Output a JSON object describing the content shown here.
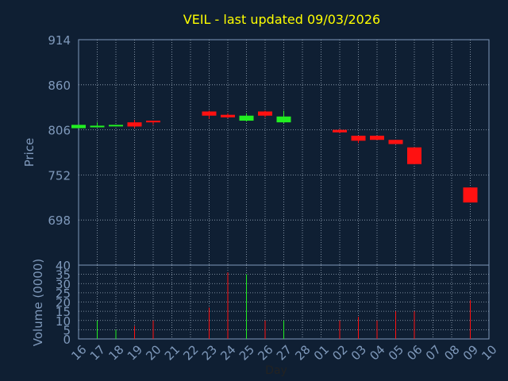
{
  "chart_data": {
    "type": "candlestick",
    "title": "VEIL - last updated 09/03/2026",
    "colors": {
      "background": "#0f1f33",
      "plot_background": "#0f1f33",
      "frame": "#7f99bb",
      "grid": "#9aaabb",
      "title": "#ffff00",
      "label": "#7f99bb",
      "up": "#22ee22",
      "down": "#ff1111",
      "axis_text": "#222222"
    },
    "price_panel": {
      "ylabel": "Price",
      "ylim": [
        644,
        914
      ],
      "yticks": [
        914,
        860,
        806,
        752,
        698
      ],
      "grid": true
    },
    "volume_panel": {
      "ylabel": "Volume (0000)",
      "ylim": [
        0,
        40
      ],
      "yticks": [
        40,
        35,
        30,
        25,
        20,
        15,
        10,
        5,
        0
      ],
      "grid": true
    },
    "xlabel": "Day",
    "x_ticks": [
      "16",
      "17",
      "18",
      "19",
      "20",
      "21",
      "22",
      "23",
      "24",
      "25",
      "26",
      "27",
      "28",
      "01",
      "02",
      "03",
      "04",
      "05",
      "06",
      "07",
      "08",
      "09",
      "10"
    ],
    "candles": [
      {
        "day": "16",
        "open": 808,
        "close": 812,
        "high": 812,
        "low": 808,
        "volume": 0
      },
      {
        "day": "17",
        "open": 809,
        "close": 811,
        "high": 815,
        "low": 809,
        "volume": 10
      },
      {
        "day": "18",
        "open": 811,
        "close": 812,
        "high": 812,
        "low": 810,
        "volume": 5
      },
      {
        "day": "19",
        "open": 815,
        "close": 810,
        "high": 818,
        "low": 808,
        "volume": 7
      },
      {
        "day": "20",
        "open": 817,
        "close": 815,
        "high": 817,
        "low": 812,
        "volume": 10
      },
      {
        "day": "23",
        "open": 828,
        "close": 823,
        "high": 829,
        "low": 819,
        "volume": 17
      },
      {
        "day": "24",
        "open": 824,
        "close": 821,
        "high": 826,
        "low": 820,
        "volume": 36
      },
      {
        "day": "25",
        "open": 817,
        "close": 823,
        "high": 826,
        "low": 816,
        "volume": 35
      },
      {
        "day": "26",
        "open": 828,
        "close": 823,
        "high": 829,
        "low": 821,
        "volume": 10
      },
      {
        "day": "27",
        "open": 815,
        "close": 822,
        "high": 829,
        "low": 814,
        "volume": 10
      },
      {
        "day": "02",
        "open": 806,
        "close": 803,
        "high": 807,
        "low": 802,
        "volume": 10
      },
      {
        "day": "03",
        "open": 799,
        "close": 793,
        "high": 799,
        "low": 790,
        "volume": 12
      },
      {
        "day": "04",
        "open": 799,
        "close": 794,
        "high": 799,
        "low": 794,
        "volume": 10
      },
      {
        "day": "05",
        "open": 794,
        "close": 789,
        "high": 794,
        "low": 789,
        "volume": 15
      },
      {
        "day": "06",
        "open": 785,
        "close": 765,
        "high": 785,
        "low": 765,
        "volume": 15
      },
      {
        "day": "09",
        "open": 737,
        "close": 719,
        "high": 737,
        "low": 719,
        "volume": 21
      }
    ]
  }
}
